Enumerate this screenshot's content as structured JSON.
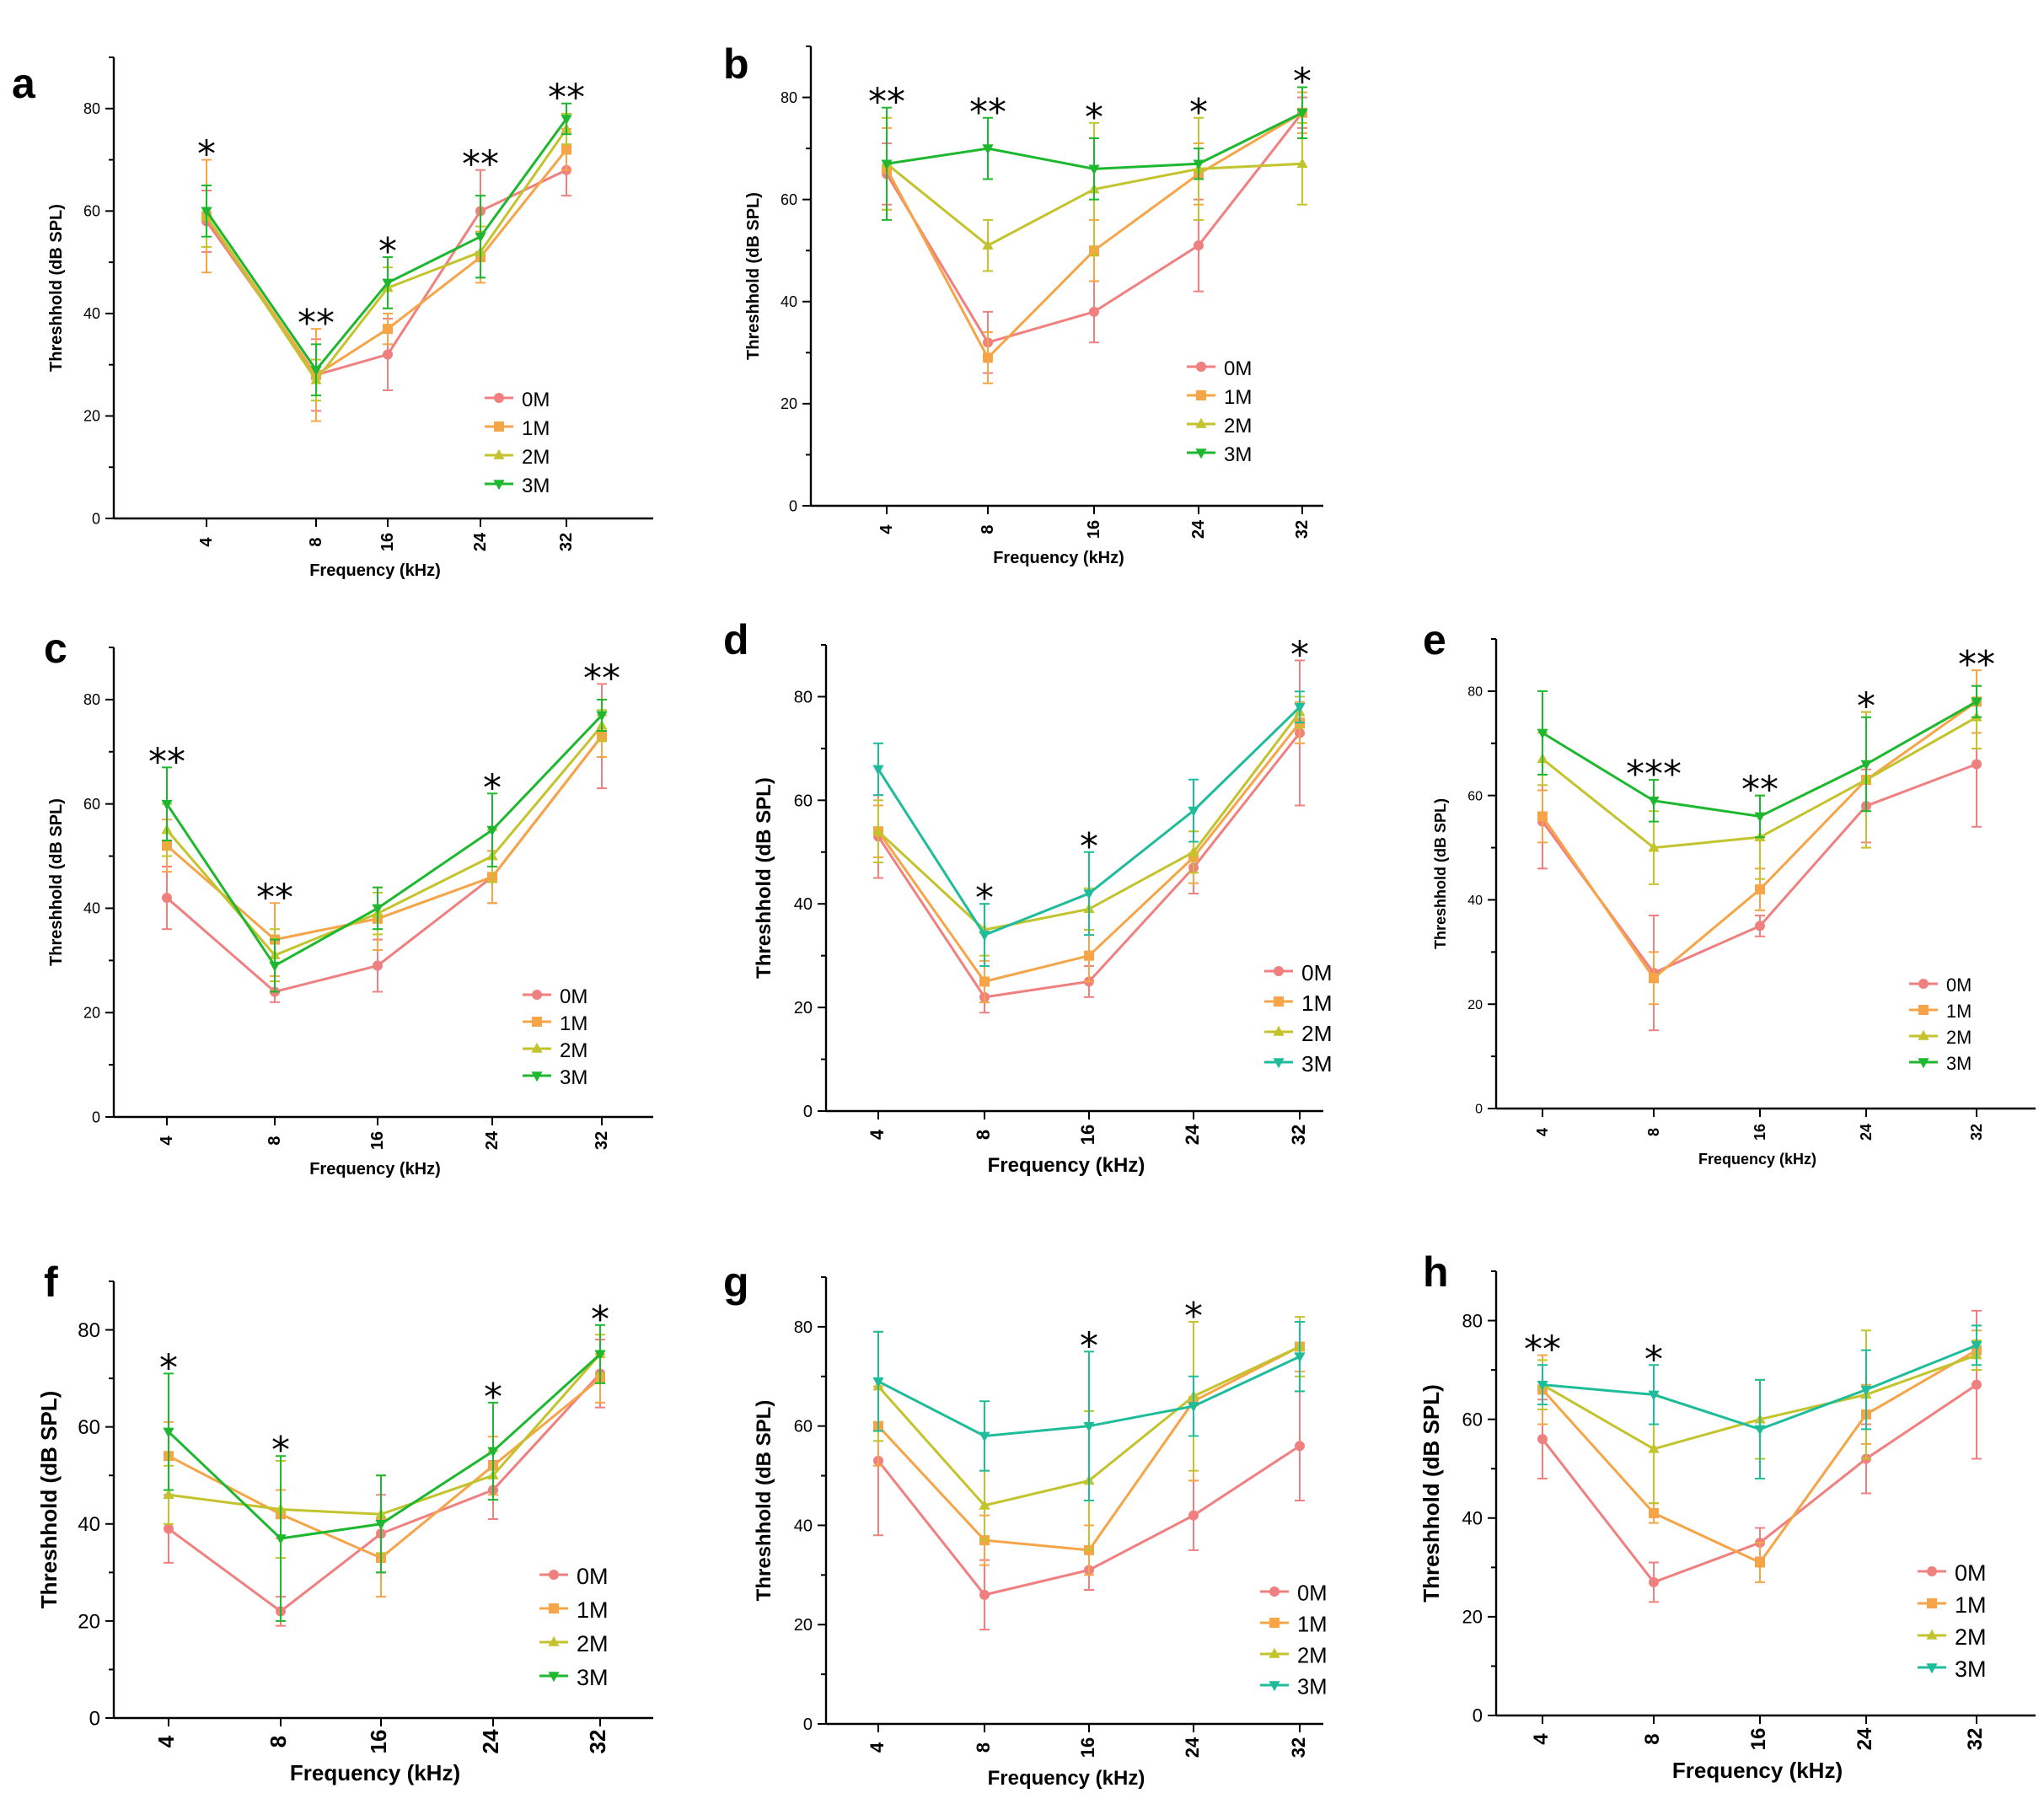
{
  "colors": {
    "0M": "#f08080",
    "1M": "#f5a547",
    "2M": "#c3c32e",
    "3M": "#1db82f",
    "3M_teal": "#1fbc9c"
  },
  "chart_data": [
    {
      "panel": "a",
      "type": "line",
      "categories": [
        "4",
        "8",
        "16",
        "24",
        "32"
      ],
      "ylabel": "Threshhold (dB SPL)",
      "xlabel": "Frequency (kHz)",
      "ylim": [
        0,
        90
      ],
      "yticks": [
        "0",
        "20",
        "40",
        "60",
        "80"
      ],
      "legend": [
        "0M",
        "1M",
        "2M",
        "3M"
      ],
      "series": [
        {
          "name": "0M",
          "values": [
            58,
            28,
            32,
            60,
            68
          ],
          "err": [
            6,
            7,
            7,
            8,
            5
          ]
        },
        {
          "name": "1M",
          "values": [
            59,
            28,
            37,
            51,
            72
          ],
          "err": [
            11,
            9,
            3,
            5,
            4
          ]
        },
        {
          "name": "2M",
          "values": [
            59,
            27,
            45,
            52,
            76
          ],
          "err": [
            6,
            4,
            4,
            5,
            3
          ]
        },
        {
          "name": "3M",
          "values": [
            60,
            29,
            46,
            55,
            78
          ],
          "err": [
            5,
            5,
            5,
            8,
            3
          ]
        }
      ],
      "significance": [
        "*",
        "**",
        "*",
        "**",
        "**"
      ]
    },
    {
      "panel": "b",
      "type": "line",
      "categories": [
        "4",
        "8",
        "16",
        "24",
        "32"
      ],
      "ylabel": "Threshhold (dB SPL)",
      "xlabel": "Frequency (kHz)",
      "ylim": [
        0,
        90
      ],
      "yticks": [
        "0",
        "20",
        "40",
        "60",
        "80"
      ],
      "legend": [
        "0M",
        "1M",
        "2M",
        "3M"
      ],
      "series": [
        {
          "name": "0M",
          "values": [
            65,
            32,
            38,
            51,
            77
          ],
          "err": [
            6,
            6,
            6,
            9,
            3
          ]
        },
        {
          "name": "1M",
          "values": [
            66,
            29,
            50,
            65,
            77
          ],
          "err": [
            8,
            5,
            6,
            6,
            4
          ]
        },
        {
          "name": "2M",
          "values": [
            67,
            51,
            62,
            66,
            67
          ],
          "err": [
            9,
            5,
            13,
            10,
            8
          ]
        },
        {
          "name": "3M",
          "values": [
            67,
            70,
            66,
            67,
            77
          ],
          "err": [
            11,
            6,
            6,
            3,
            5
          ]
        }
      ],
      "significance": [
        "**",
        "**",
        "*",
        "*",
        "*"
      ]
    },
    {
      "panel": "c",
      "type": "line",
      "categories": [
        "4",
        "8",
        "16",
        "24",
        "32"
      ],
      "ylabel": "Threshhold (dB SPL)",
      "xlabel": "Frequency (kHz)",
      "ylim": [
        0,
        90
      ],
      "yticks": [
        "0",
        "20",
        "40",
        "60",
        "80"
      ],
      "legend": [
        "0M",
        "1M",
        "2M",
        "3M"
      ],
      "series": [
        {
          "name": "0M",
          "values": [
            42,
            24,
            29,
            46,
            73
          ],
          "err": [
            6,
            2,
            5,
            5,
            10
          ]
        },
        {
          "name": "1M",
          "values": [
            52,
            34,
            38,
            46,
            73
          ],
          "err": [
            5,
            7,
            6,
            5,
            4
          ]
        },
        {
          "name": "2M",
          "values": [
            55,
            31,
            39,
            50,
            75
          ],
          "err": [
            5,
            5,
            4,
            5,
            3
          ]
        },
        {
          "name": "3M",
          "values": [
            60,
            29,
            40,
            55,
            77
          ],
          "err": [
            7,
            5,
            4,
            7,
            3
          ]
        }
      ],
      "significance": [
        "**",
        "**",
        "",
        "*",
        "**"
      ]
    },
    {
      "panel": "d",
      "type": "line",
      "categories": [
        "4",
        "8",
        "16",
        "24",
        "32"
      ],
      "ylabel": "Threshhold (dB SPL)",
      "xlabel": "Frequency (kHz)",
      "ylim": [
        0,
        90
      ],
      "yticks": [
        "0",
        "20",
        "40",
        "60",
        "80"
      ],
      "legend": [
        "0M",
        "1M",
        "2M",
        "3M"
      ],
      "series": [
        {
          "name": "0M",
          "values": [
            53,
            22,
            25,
            47,
            73
          ],
          "err": [
            8,
            3,
            3,
            5,
            14
          ]
        },
        {
          "name": "1M",
          "values": [
            54,
            25,
            30,
            49,
            75
          ],
          "err": [
            5,
            4,
            5,
            5,
            4
          ]
        },
        {
          "name": "2M",
          "values": [
            54,
            35,
            39,
            50,
            77
          ],
          "err": [
            6,
            5,
            4,
            4,
            3
          ]
        },
        {
          "name": "3M",
          "values": [
            66,
            34,
            42,
            58,
            78
          ],
          "err": [
            5,
            6,
            8,
            6,
            3
          ]
        }
      ],
      "significance": [
        "",
        "*",
        "*",
        "",
        "*"
      ]
    },
    {
      "panel": "e",
      "type": "line",
      "categories": [
        "4",
        "8",
        "16",
        "24",
        "32"
      ],
      "ylabel": "Threshhold (dB SPL)",
      "xlabel": "Frequency (kHz)",
      "ylim": [
        0,
        90
      ],
      "yticks": [
        "0",
        "20",
        "40",
        "60",
        "80"
      ],
      "legend": [
        "0M",
        "1M",
        "2M",
        "3M"
      ],
      "series": [
        {
          "name": "0M",
          "values": [
            55,
            26,
            35,
            58,
            66
          ],
          "err": [
            9,
            11,
            2,
            7,
            12
          ]
        },
        {
          "name": "1M",
          "values": [
            56,
            25,
            42,
            63,
            78
          ],
          "err": [
            5,
            5,
            4,
            13,
            6
          ]
        },
        {
          "name": "2M",
          "values": [
            67,
            50,
            52,
            63,
            75
          ],
          "err": [
            5,
            7,
            8,
            13,
            6
          ]
        },
        {
          "name": "3M",
          "values": [
            72,
            59,
            56,
            66,
            78
          ],
          "err": [
            8,
            4,
            4,
            9,
            3
          ]
        }
      ],
      "significance": [
        "",
        "***",
        "**",
        "*",
        "**"
      ]
    },
    {
      "panel": "f",
      "type": "line",
      "categories": [
        "4",
        "8",
        "16",
        "24",
        "32"
      ],
      "ylabel": "Threshhold (dB SPL)",
      "xlabel": "Frequency (kHz)",
      "ylim": [
        0,
        90
      ],
      "yticks": [
        "0",
        "20",
        "40",
        "60",
        "80"
      ],
      "legend": [
        "0M",
        "1M",
        "2M",
        "3M"
      ],
      "series": [
        {
          "name": "0M",
          "values": [
            39,
            22,
            38,
            47,
            71
          ],
          "err": [
            7,
            3,
            8,
            6,
            7
          ]
        },
        {
          "name": "1M",
          "values": [
            54,
            42,
            33,
            52,
            70
          ],
          "err": [
            7,
            5,
            8,
            6,
            5
          ]
        },
        {
          "name": "2M",
          "values": [
            46,
            43,
            42,
            50,
            75
          ],
          "err": [
            6,
            10,
            8,
            5,
            4
          ]
        },
        {
          "name": "3M",
          "values": [
            59,
            37,
            40,
            55,
            75
          ],
          "err": [
            12,
            17,
            10,
            10,
            6
          ]
        }
      ],
      "significance": [
        "*",
        "*",
        "",
        "*",
        "*"
      ]
    },
    {
      "panel": "g",
      "type": "line",
      "categories": [
        "4",
        "8",
        "16",
        "24",
        "32"
      ],
      "ylabel": "Threshhold (dB SPL)",
      "xlabel": "Frequency (kHz)",
      "ylim": [
        0,
        90
      ],
      "yticks": [
        "0",
        "20",
        "40",
        "60",
        "80"
      ],
      "legend": [
        "0M",
        "1M",
        "2M",
        "3M"
      ],
      "series": [
        {
          "name": "0M",
          "values": [
            53,
            26,
            31,
            42,
            56
          ],
          "err": [
            15,
            7,
            4,
            7,
            11
          ]
        },
        {
          "name": "1M",
          "values": [
            60,
            37,
            35,
            65,
            76
          ],
          "err": [
            8,
            5,
            5,
            16,
            5
          ]
        },
        {
          "name": "2M",
          "values": [
            68,
            44,
            49,
            66,
            76
          ],
          "err": [
            11,
            7,
            14,
            15,
            6
          ]
        },
        {
          "name": "3M",
          "values": [
            69,
            58,
            60,
            64,
            74
          ],
          "err": [
            10,
            7,
            15,
            6,
            7
          ]
        }
      ],
      "significance": [
        "",
        "",
        "*",
        "*",
        ""
      ]
    },
    {
      "panel": "h",
      "type": "line",
      "categories": [
        "4",
        "8",
        "16",
        "24",
        "32"
      ],
      "ylabel": "Threshhold (dB SPL)",
      "xlabel": "Frequency (kHz)",
      "ylim": [
        0,
        90
      ],
      "yticks": [
        "0",
        "20",
        "40",
        "60",
        "80"
      ],
      "legend": [
        "0M",
        "1M",
        "2M",
        "3M"
      ],
      "series": [
        {
          "name": "0M",
          "values": [
            56,
            27,
            35,
            52,
            67
          ],
          "err": [
            8,
            4,
            3,
            7,
            15
          ]
        },
        {
          "name": "1M",
          "values": [
            66,
            41,
            31,
            61,
            74
          ],
          "err": [
            7,
            2,
            4,
            6,
            4
          ]
        },
        {
          "name": "2M",
          "values": [
            67,
            54,
            60,
            65,
            73
          ],
          "err": [
            5,
            11,
            8,
            13,
            3
          ]
        },
        {
          "name": "3M",
          "values": [
            67,
            65,
            58,
            66,
            75
          ],
          "err": [
            4,
            6,
            10,
            8,
            4
          ]
        }
      ],
      "significance": [
        "**",
        "*",
        "",
        "",
        ""
      ]
    }
  ]
}
